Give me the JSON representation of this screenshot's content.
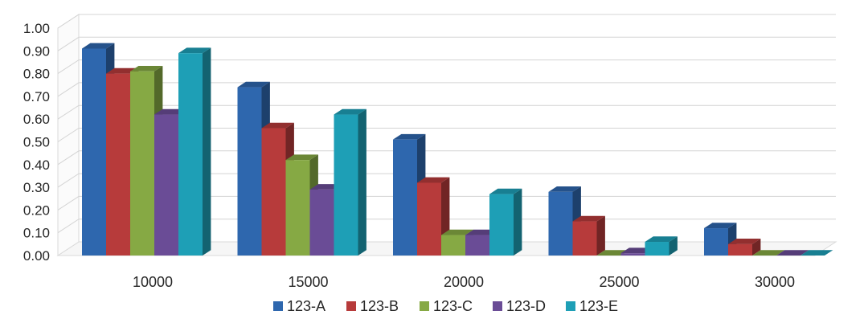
{
  "chart_data": {
    "type": "bar",
    "style": "3d-clustered-column",
    "title": "",
    "xlabel": "",
    "ylabel": "",
    "categories": [
      "10000",
      "15000",
      "20000",
      "25000",
      "30000"
    ],
    "ylim": [
      0,
      1
    ],
    "yticks": [
      "0.00",
      "0.10",
      "0.20",
      "0.30",
      "0.40",
      "0.50",
      "0.60",
      "0.70",
      "0.80",
      "0.90",
      "1.00"
    ],
    "grid": true,
    "legend_position": "bottom",
    "series": [
      {
        "name": "123-A",
        "color": "#2E67AE",
        "values": [
          0.91,
          0.74,
          0.51,
          0.28,
          0.12
        ]
      },
      {
        "name": "123-B",
        "color": "#B73B3B",
        "values": [
          0.8,
          0.56,
          0.32,
          0.15,
          0.05
        ]
      },
      {
        "name": "123-C",
        "color": "#86A944",
        "values": [
          0.81,
          0.42,
          0.09,
          0.0,
          0.0
        ]
      },
      {
        "name": "123-D",
        "color": "#6A4C96",
        "values": [
          0.62,
          0.29,
          0.09,
          0.01,
          0.0
        ]
      },
      {
        "name": "123-E",
        "color": "#1E9FB6",
        "values": [
          0.89,
          0.62,
          0.27,
          0.06,
          0.0
        ]
      }
    ]
  }
}
